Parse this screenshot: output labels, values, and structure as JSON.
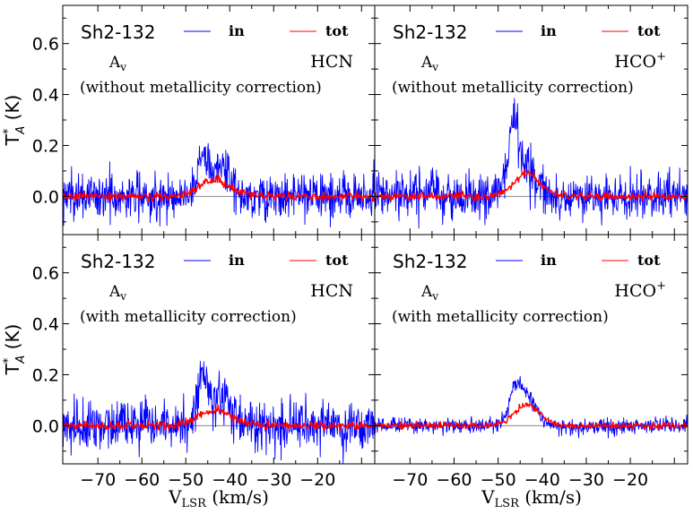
{
  "figure": {
    "xlabel_main": "V",
    "xlabel_sub": "LSR",
    "xlabel_unit": "(km/s)",
    "ylabel_main": "T",
    "ylabel_sup": "*",
    "ylabel_sub": "A",
    "ylabel_unit": "(K)"
  },
  "colors": {
    "in": "#0000ff",
    "tot": "#ff0000",
    "baseline": "#888888"
  },
  "chart_data": [
    {
      "type": "line",
      "panel": "top-left",
      "source": "Sh2-132",
      "molecule": "HCN",
      "av_label": "A",
      "av_sub": "v",
      "correction": "(without metallicity correction)",
      "legend": {
        "in": "in",
        "tot": "tot"
      },
      "xlim": [
        -78,
        -7
      ],
      "ylim": [
        -0.15,
        0.75
      ],
      "yticks": [
        0.0,
        0.2,
        0.4,
        0.6
      ],
      "xticks": [
        -70,
        -60,
        -50,
        -40,
        -30,
        -20
      ],
      "noise_in": 0.045,
      "noise_tot": 0.008,
      "series": [
        {
          "name": "in",
          "components": [
            {
              "amp": 0.17,
              "center": -46.0,
              "sigma": 1.3
            },
            {
              "amp": 0.12,
              "center": -41.5,
              "sigma": 1.8
            }
          ]
        },
        {
          "name": "tot",
          "components": [
            {
              "amp": 0.065,
              "center": -43.5,
              "sigma": 3.5
            }
          ]
        }
      ]
    },
    {
      "type": "line",
      "panel": "top-right",
      "source": "Sh2-132",
      "molecule": "HCO",
      "molecule_sup": "+",
      "av_label": "A",
      "av_sub": "v",
      "correction": "(without metallicity correction)",
      "legend": {
        "in": "in",
        "tot": "tot"
      },
      "xlim": [
        -78,
        -7
      ],
      "ylim": [
        -0.15,
        0.75
      ],
      "yticks": [
        0.0,
        0.2,
        0.4,
        0.6
      ],
      "xticks": [
        -70,
        -60,
        -50,
        -40,
        -30,
        -20
      ],
      "noise_in": 0.045,
      "noise_tot": 0.008,
      "series": [
        {
          "name": "in",
          "components": [
            {
              "amp": 0.26,
              "center": -46.5,
              "sigma": 1.2
            },
            {
              "amp": 0.09,
              "center": -43.0,
              "sigma": 2.5
            }
          ]
        },
        {
          "name": "tot",
          "components": [
            {
              "amp": 0.09,
              "center": -43.5,
              "sigma": 3.0
            }
          ]
        }
      ]
    },
    {
      "type": "line",
      "panel": "bottom-left",
      "source": "Sh2-132",
      "molecule": "HCN",
      "av_label": "A",
      "av_sub": "v",
      "correction": "(with metallicity correction)",
      "legend": {
        "in": "in",
        "tot": "tot"
      },
      "xlim": [
        -78,
        -7
      ],
      "ylim": [
        -0.15,
        0.75
      ],
      "yticks": [
        0.0,
        0.2,
        0.4,
        0.6
      ],
      "xticks": [
        -70,
        -60,
        -50,
        -40,
        -30,
        -20
      ],
      "noise_in": 0.05,
      "noise_tot": 0.008,
      "series": [
        {
          "name": "in",
          "components": [
            {
              "amp": 0.2,
              "center": -46.0,
              "sigma": 1.3
            },
            {
              "amp": 0.13,
              "center": -41.5,
              "sigma": 1.6
            }
          ]
        },
        {
          "name": "tot",
          "components": [
            {
              "amp": 0.06,
              "center": -43.5,
              "sigma": 3.8
            }
          ]
        }
      ]
    },
    {
      "type": "line",
      "panel": "bottom-right",
      "source": "Sh2-132",
      "molecule": "HCO",
      "molecule_sup": "+",
      "av_label": "A",
      "av_sub": "v",
      "correction": "(with metallicity correction)",
      "legend": {
        "in": "in",
        "tot": "tot"
      },
      "xlim": [
        -78,
        -7
      ],
      "ylim": [
        -0.15,
        0.75
      ],
      "yticks": [
        0.0,
        0.2,
        0.4,
        0.6
      ],
      "xticks": [
        -70,
        -60,
        -50,
        -40,
        -30,
        -20
      ],
      "noise_in": 0.015,
      "noise_tot": 0.006,
      "series": [
        {
          "name": "in",
          "components": [
            {
              "amp": 0.15,
              "center": -46.0,
              "sigma": 1.5
            },
            {
              "amp": 0.1,
              "center": -42.8,
              "sigma": 1.8
            }
          ]
        },
        {
          "name": "tot",
          "components": [
            {
              "amp": 0.08,
              "center": -43.5,
              "sigma": 3.0
            }
          ]
        }
      ]
    }
  ]
}
